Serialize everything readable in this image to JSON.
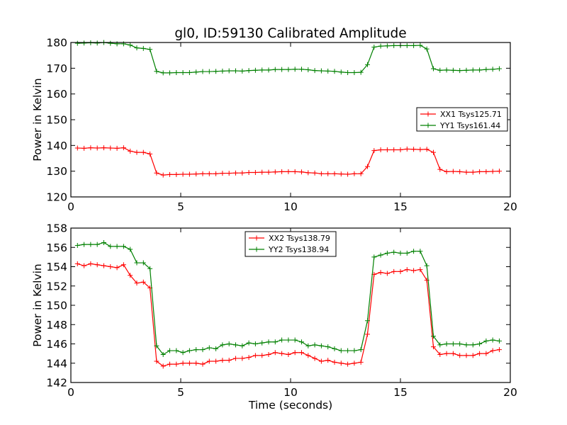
{
  "title": "gl0, ID:59130 Calibrated Amplitude",
  "colors": {
    "red": "#ff0000",
    "green": "#008000"
  },
  "chart_data": [
    {
      "type": "line",
      "xlim": [
        0,
        20
      ],
      "ylim": [
        120,
        180
      ],
      "xticks": [
        0,
        5,
        10,
        15,
        20
      ],
      "yticks": [
        120,
        130,
        140,
        150,
        160,
        170,
        180
      ],
      "xlabel": "",
      "ylabel": "Power in Kelvin",
      "grid": false,
      "legend_position": "center-right",
      "x": [
        0.3,
        0.6,
        0.9,
        1.2,
        1.5,
        1.8,
        2.1,
        2.4,
        2.7,
        3.0,
        3.3,
        3.6,
        3.9,
        4.2,
        4.5,
        4.8,
        5.1,
        5.4,
        5.7,
        6.0,
        6.3,
        6.6,
        6.9,
        7.2,
        7.5,
        7.8,
        8.1,
        8.4,
        8.7,
        9.0,
        9.3,
        9.6,
        9.9,
        10.2,
        10.5,
        10.8,
        11.1,
        11.4,
        11.7,
        12.0,
        12.3,
        12.6,
        12.9,
        13.2,
        13.5,
        13.8,
        14.1,
        14.4,
        14.7,
        15.0,
        15.3,
        15.6,
        15.9,
        16.2,
        16.5,
        16.8,
        17.1,
        17.4,
        17.7,
        18.0,
        18.3,
        18.6,
        18.9,
        19.2,
        19.5
      ],
      "series": [
        {
          "name": "XX1 Tsys125.71",
          "color": "red",
          "values": [
            139.0,
            138.9,
            139.1,
            139.0,
            139.1,
            139.0,
            138.9,
            139.1,
            137.8,
            137.3,
            137.3,
            136.7,
            129.3,
            128.5,
            128.7,
            128.7,
            128.8,
            128.8,
            128.9,
            129.0,
            129.0,
            129.0,
            129.2,
            129.2,
            129.3,
            129.3,
            129.5,
            129.5,
            129.6,
            129.6,
            129.7,
            129.8,
            129.8,
            129.8,
            129.7,
            129.4,
            129.3,
            129.0,
            129.0,
            129.0,
            128.9,
            128.8,
            129.0,
            129.0,
            131.8,
            138.0,
            138.3,
            138.3,
            138.3,
            138.3,
            138.6,
            138.5,
            138.4,
            138.5,
            137.3,
            130.7,
            129.8,
            129.9,
            129.8,
            129.6,
            129.6,
            129.8,
            129.8,
            129.9,
            130.0
          ]
        },
        {
          "name": "YY1 Tsys161.44",
          "color": "green",
          "values": [
            179.7,
            179.8,
            179.9,
            179.8,
            180.0,
            179.7,
            179.5,
            179.5,
            179.0,
            177.9,
            177.7,
            177.3,
            168.8,
            168.2,
            168.2,
            168.3,
            168.3,
            168.3,
            168.5,
            168.7,
            168.7,
            168.8,
            168.9,
            169.0,
            169.0,
            168.9,
            169.1,
            169.2,
            169.3,
            169.3,
            169.5,
            169.5,
            169.5,
            169.6,
            169.6,
            169.4,
            169.1,
            169.0,
            168.9,
            168.8,
            168.5,
            168.3,
            168.3,
            168.4,
            171.4,
            178.2,
            178.6,
            178.7,
            178.8,
            178.8,
            178.8,
            178.8,
            178.9,
            177.5,
            169.8,
            169.2,
            169.3,
            169.2,
            169.1,
            169.2,
            169.3,
            169.3,
            169.5,
            169.6,
            169.8
          ]
        }
      ]
    },
    {
      "type": "line",
      "xlim": [
        0,
        20
      ],
      "ylim": [
        142,
        158
      ],
      "xticks": [
        0,
        5,
        10,
        15,
        20
      ],
      "yticks": [
        142,
        144,
        146,
        148,
        150,
        152,
        154,
        156,
        158
      ],
      "xlabel": "Time (seconds)",
      "ylabel": "Power in Kelvin",
      "grid": false,
      "legend_position": "upper-center",
      "x": [
        0.3,
        0.6,
        0.9,
        1.2,
        1.5,
        1.8,
        2.1,
        2.4,
        2.7,
        3.0,
        3.3,
        3.6,
        3.9,
        4.2,
        4.5,
        4.8,
        5.1,
        5.4,
        5.7,
        6.0,
        6.3,
        6.6,
        6.9,
        7.2,
        7.5,
        7.8,
        8.1,
        8.4,
        8.7,
        9.0,
        9.3,
        9.6,
        9.9,
        10.2,
        10.5,
        10.8,
        11.1,
        11.4,
        11.7,
        12.0,
        12.3,
        12.6,
        12.9,
        13.2,
        13.5,
        13.8,
        14.1,
        14.4,
        14.7,
        15.0,
        15.3,
        15.6,
        15.9,
        16.2,
        16.5,
        16.8,
        17.1,
        17.4,
        17.7,
        18.0,
        18.3,
        18.6,
        18.9,
        19.2,
        19.5
      ],
      "series": [
        {
          "name": "XX2 Tsys138.79",
          "color": "red",
          "values": [
            154.3,
            154.1,
            154.3,
            154.2,
            154.1,
            154.0,
            153.9,
            154.2,
            153.1,
            152.3,
            152.4,
            151.8,
            144.2,
            143.7,
            143.9,
            143.9,
            144.0,
            144.0,
            144.0,
            143.9,
            144.2,
            144.2,
            144.3,
            144.3,
            144.5,
            144.5,
            144.6,
            144.8,
            144.8,
            144.9,
            145.1,
            145.0,
            144.9,
            145.1,
            145.1,
            144.8,
            144.5,
            144.2,
            144.3,
            144.1,
            144.0,
            143.9,
            144.0,
            144.1,
            147.0,
            153.2,
            153.4,
            153.3,
            153.5,
            153.5,
            153.7,
            153.6,
            153.7,
            152.6,
            145.7,
            144.9,
            145.0,
            145.0,
            144.8,
            144.8,
            144.8,
            145.0,
            145.0,
            145.3,
            145.4
          ]
        },
        {
          "name": "YY2 Tsys138.94",
          "color": "green",
          "values": [
            156.2,
            156.3,
            156.3,
            156.3,
            156.5,
            156.1,
            156.1,
            156.1,
            155.8,
            154.4,
            154.4,
            153.8,
            145.8,
            144.9,
            145.3,
            145.3,
            145.1,
            145.3,
            145.4,
            145.4,
            145.6,
            145.5,
            145.9,
            146.0,
            145.9,
            145.8,
            146.1,
            146.0,
            146.1,
            146.2,
            146.2,
            146.4,
            146.4,
            146.4,
            146.2,
            145.8,
            145.9,
            145.8,
            145.7,
            145.5,
            145.3,
            145.3,
            145.3,
            145.4,
            148.4,
            155.0,
            155.2,
            155.4,
            155.5,
            155.4,
            155.4,
            155.6,
            155.6,
            154.1,
            146.8,
            145.9,
            146.0,
            146.0,
            146.0,
            145.9,
            145.9,
            146.0,
            146.3,
            146.4,
            146.3
          ]
        }
      ]
    }
  ]
}
